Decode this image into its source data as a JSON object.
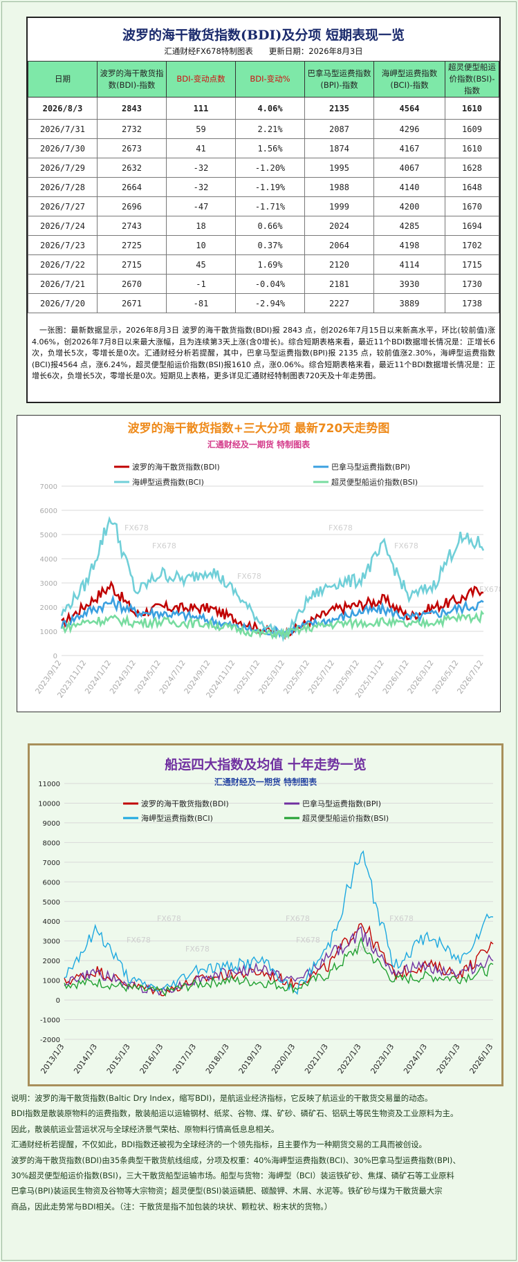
{
  "table": {
    "title": "波罗的海干散货指数(BDI)及分项 短期表现一览",
    "subtitle": "汇通财经FX678特制图表　　更新日期：2026年8月3日",
    "headers": [
      "日期",
      "波罗的海干散货指数(BDI)-指数",
      "BDI-变动点数",
      "BDI-变动%",
      "巴拿马型运费指数(BPI)-指数",
      "海岬型运费指数(BCI)-指数",
      "超灵便型船运价指数(BSI)-指数"
    ],
    "rows": [
      [
        "2026/8/3",
        "2843",
        "111",
        "4.06%",
        "2135",
        "4564",
        "1610"
      ],
      [
        "2026/7/31",
        "2732",
        "59",
        "2.21%",
        "2087",
        "4296",
        "1609"
      ],
      [
        "2026/7/30",
        "2673",
        "41",
        "1.56%",
        "1874",
        "4167",
        "1610"
      ],
      [
        "2026/7/29",
        "2632",
        "-32",
        "-1.20%",
        "1995",
        "4067",
        "1628"
      ],
      [
        "2026/7/28",
        "2664",
        "-32",
        "-1.19%",
        "1988",
        "4140",
        "1648"
      ],
      [
        "2026/7/27",
        "2696",
        "-47",
        "-1.71%",
        "1999",
        "4200",
        "1670"
      ],
      [
        "2026/7/24",
        "2743",
        "18",
        "0.66%",
        "2024",
        "4285",
        "1694"
      ],
      [
        "2026/7/23",
        "2725",
        "10",
        "0.37%",
        "2064",
        "4198",
        "1702"
      ],
      [
        "2026/7/22",
        "2715",
        "45",
        "1.69%",
        "2120",
        "4114",
        "1715"
      ],
      [
        "2026/7/21",
        "2670",
        "-1",
        "-0.04%",
        "2181",
        "3930",
        "1730"
      ],
      [
        "2026/7/20",
        "2671",
        "-81",
        "-2.94%",
        "2227",
        "3889",
        "1738"
      ]
    ],
    "note": "一张图：最新数据显示，2026年8月3日 波罗的海干散货指数(BDI)报 2843 点，创2026年7月15日以来新高水平，环比(较前值)涨4.06%，创2026年7月8日以来最大涨幅，且为连续第3天上涨(含0增长)。综合短期表格来看，最近11个BDI数据增长情况是：正增长6次，负增长5次，零增长是0次。汇通财经分析若提醒，其中，巴拿马型运费指数(BPI)报 2135 点，较前值涨2.30%，海岬型运费指数(BCI)报4564 点，涨6.24%，超灵便型船运价指数(BSI)报1610 点，涨0.06%。综合短期表格来看，最近11个BDI数据增长情况是：正增长6次，负增长5次，零增长是0次。短期见上表格，更多详见汇通财经特制图表720天及十年走势图。"
  },
  "chart_data": [
    {
      "type": "line",
      "title": "波罗的海干散货指数+三大分项 最新720天走势图",
      "subtitle": "汇通财经及一期货 特制图表",
      "watermark": "FX678",
      "ylim": [
        0,
        7000
      ],
      "yticks": [
        0,
        1000,
        2000,
        3000,
        4000,
        5000,
        6000,
        7000
      ],
      "x": [
        "2023/9/12",
        "2023/11/12",
        "2024/1/12",
        "2024/3/12",
        "2024/5/12",
        "2024/7/12",
        "2024/9/12",
        "2024/11/12",
        "2025/1/12",
        "2025/3/12",
        "2025/5/12",
        "2025/7/12",
        "2025/9/12",
        "2025/11/12",
        "2026/1/12",
        "2026/3/12",
        "2026/5/12",
        "2026/7/12"
      ],
      "xticks": [
        "2023/9/12",
        "2023/11/12",
        "2024/1/12",
        "2024/3/12",
        "2024/5/12",
        "2024/7/12",
        "2024/9/12",
        "2024/11/12",
        "2025/1/12",
        "2025/3/12",
        "2025/5/12",
        "2025/7/12",
        "2025/9/12",
        "2025/11/12",
        "2026/1/12",
        "2026/3/12",
        "2026/5/12",
        "2026/7/12"
      ],
      "series": [
        {
          "name": "波罗的海干散货指数(BDI)",
          "color": "#c00000",
          "values": [
            1300,
            2100,
            2900,
            1700,
            2000,
            1950,
            1950,
            1500,
            1100,
            900,
            1400,
            1900,
            2100,
            2300,
            1600,
            2000,
            2300,
            2820
          ]
        },
        {
          "name": "巴拿马型运费指数(BPI)",
          "color": "#3aa0e0",
          "values": [
            1250,
            1800,
            2200,
            1800,
            1750,
            1650,
            1450,
            1200,
            1000,
            1000,
            1300,
            1500,
            1800,
            1900,
            1550,
            1700,
            1950,
            2150
          ]
        },
        {
          "name": "海岬型运费指数(BCI)",
          "color": "#70cfd8",
          "values": [
            1700,
            3000,
            5800,
            2600,
            3400,
            3100,
            3600,
            2600,
            1400,
            800,
            2400,
            3000,
            3100,
            4500,
            2400,
            2900,
            4800,
            4560
          ]
        },
        {
          "name": "超灵便型船运价指数(BSI)",
          "color": "#78dca0",
          "values": [
            1100,
            1400,
            1500,
            1350,
            1400,
            1350,
            1300,
            1100,
            900,
            900,
            1150,
            1300,
            1350,
            1400,
            1250,
            1400,
            1550,
            1610
          ]
        }
      ]
    },
    {
      "type": "line",
      "title": "船运四大指数及均值 十年走势一览",
      "subtitle": "汇通财经及一期货 特制图表",
      "watermark": "FX678",
      "ylim": [
        -2000,
        11000
      ],
      "yticks": [
        -2000,
        -1000,
        0,
        1000,
        2000,
        3000,
        4000,
        5000,
        6000,
        7000,
        8000,
        9000,
        10000,
        11000
      ],
      "x": [
        "2013/1/3",
        "2014/1/3",
        "2015/1/3",
        "2016/1/3",
        "2017/1/3",
        "2018/1/3",
        "2019/1/3",
        "2020/1/3",
        "2021/1/3",
        "2022/1/3",
        "2023/1/3",
        "2024/1/3",
        "2025/1/3",
        "2026/1/3"
      ],
      "xticks": [
        "2013/1/3",
        "2014/1/3",
        "2015/1/3",
        "2016/1/3",
        "2017/1/3",
        "2018/1/3",
        "2019/1/3",
        "2020/1/3",
        "2021/1/3",
        "2022/1/3",
        "2023/1/3",
        "2024/1/3",
        "2025/1/3",
        "2026/1/3"
      ],
      "series": [
        {
          "name": "波罗的海干散货指数(BDI)",
          "color": "#c00000",
          "values": [
            900,
            1500,
            750,
            400,
            1000,
            1300,
            1400,
            800,
            1700,
            4000,
            1300,
            1800,
            1300,
            2800
          ]
        },
        {
          "name": "巴拿马型运费指数(BPI)",
          "color": "#7030a0",
          "values": [
            900,
            1400,
            700,
            450,
            1000,
            1400,
            1600,
            900,
            2200,
            3400,
            1500,
            1700,
            1300,
            2100
          ]
        },
        {
          "name": "海岬型运费指数(BCI)",
          "color": "#1ca8e0",
          "values": [
            1200,
            3600,
            1000,
            500,
            1600,
            1700,
            2000,
            400,
            2700,
            7500,
            1700,
            3300,
            2000,
            4600
          ]
        },
        {
          "name": "超灵便型船运价指数(BSI)",
          "color": "#20a030",
          "values": [
            800,
            900,
            600,
            400,
            800,
            1000,
            900,
            600,
            1300,
            2800,
            1000,
            1200,
            1100,
            1600
          ]
        }
      ]
    }
  ],
  "description": [
    "说明：波罗的海干散货指数(Baltic Dry Index，缩写BDI)，是航运业经济指标，它反映了航运业的干散货交易量的动态。",
    "BDI指数是散装原物料的运费指数，散装船运以运输钢材、纸浆、谷物、煤、矿砂、磷矿石、铝矾土等民生物资及工业原料为主。",
    "因此，散装航运业营运状况与全球经济景气荣枯、原物料行情高低息息相关。",
    "汇通财经析若提醒，不仅如此，BDI指数还被视为全球经济的一个领先指标，且主要作为一种期货交易的工具而被创设。",
    "波罗的海干散货指数(BDI)由35条典型干散货航线组成，分项及权重：40%海岬型运费指数(BCI)、30%巴拿马型运费指数(BPI)、",
    "30%超灵便型船运价指数(BSI)，三大干散货船型运输市场。船型与货物：海岬型（BCI）装运铁矿砂、焦煤、磷矿石等工业原料",
    "巴拿马(BPI)装运民生物资及谷物等大宗物资；超灵便型(BSI)装运磷肥、碳酸钾、木屑、水泥等。铁矿砂与煤为干散货最大宗",
    "商品，因此走势常与BDI相关。（注：干散货是指不加包装的块状、颗粒状、粉末状的货物。）"
  ]
}
